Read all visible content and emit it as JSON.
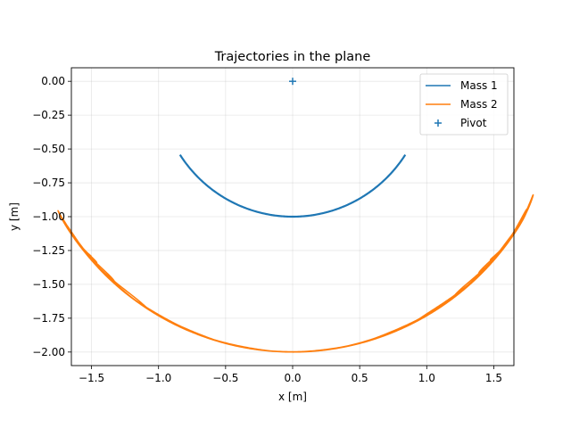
{
  "chart_data": {
    "type": "line",
    "title": "Trajectories in the plane",
    "xlabel": "x [m]",
    "ylabel": "y [m]",
    "xlim": [
      -1.65,
      1.65
    ],
    "ylim": [
      -2.1,
      0.1
    ],
    "xticks": [
      -1.5,
      -1.0,
      -0.5,
      0.0,
      0.5,
      1.0,
      1.5
    ],
    "xtick_labels": [
      "−1.5",
      "−1.0",
      "−0.5",
      "0.0",
      "0.5",
      "1.0",
      "1.5"
    ],
    "yticks": [
      0.0,
      -0.25,
      -0.5,
      -0.75,
      -1.0,
      -1.25,
      -1.5,
      -1.75,
      -2.0
    ],
    "ytick_labels": [
      "0.00",
      "−0.25",
      "−0.50",
      "−0.75",
      "−1.00",
      "−1.25",
      "−1.50",
      "−1.75",
      "−2.00"
    ],
    "grid": true,
    "legend_position": "top-right",
    "series": [
      {
        "name": "Mass 1",
        "kind": "line",
        "color": "#1f77b4",
        "x_range": [
          -0.84,
          0.84
        ],
        "y_min": -1.0,
        "points": [
          [
            -0.84,
            -0.54
          ],
          [
            -0.7,
            -0.71
          ],
          [
            -0.5,
            -0.87
          ],
          [
            -0.3,
            -0.95
          ],
          [
            0.0,
            -1.0
          ],
          [
            0.3,
            -0.95
          ],
          [
            0.5,
            -0.87
          ],
          [
            0.7,
            -0.71
          ],
          [
            0.84,
            -0.54
          ]
        ]
      },
      {
        "name": "Mass 2",
        "kind": "line",
        "color": "#ff7f0e",
        "x_range": [
          -1.5,
          1.5
        ],
        "y_range": [
          -2.0,
          -1.06
        ],
        "points": [
          [
            -1.42,
            -1.07
          ],
          [
            -1.48,
            -1.25
          ],
          [
            -1.35,
            -1.45
          ],
          [
            -1.0,
            -1.7
          ],
          [
            -0.5,
            -1.9
          ],
          [
            0.0,
            -1.97
          ],
          [
            0.5,
            -1.9
          ],
          [
            1.0,
            -1.7
          ],
          [
            1.35,
            -1.45
          ],
          [
            1.48,
            -1.25
          ],
          [
            1.42,
            -1.07
          ]
        ]
      },
      {
        "name": "Pivot",
        "kind": "marker",
        "marker": "+",
        "color": "#1f77b4",
        "points": [
          [
            0.0,
            0.0
          ]
        ]
      }
    ]
  }
}
